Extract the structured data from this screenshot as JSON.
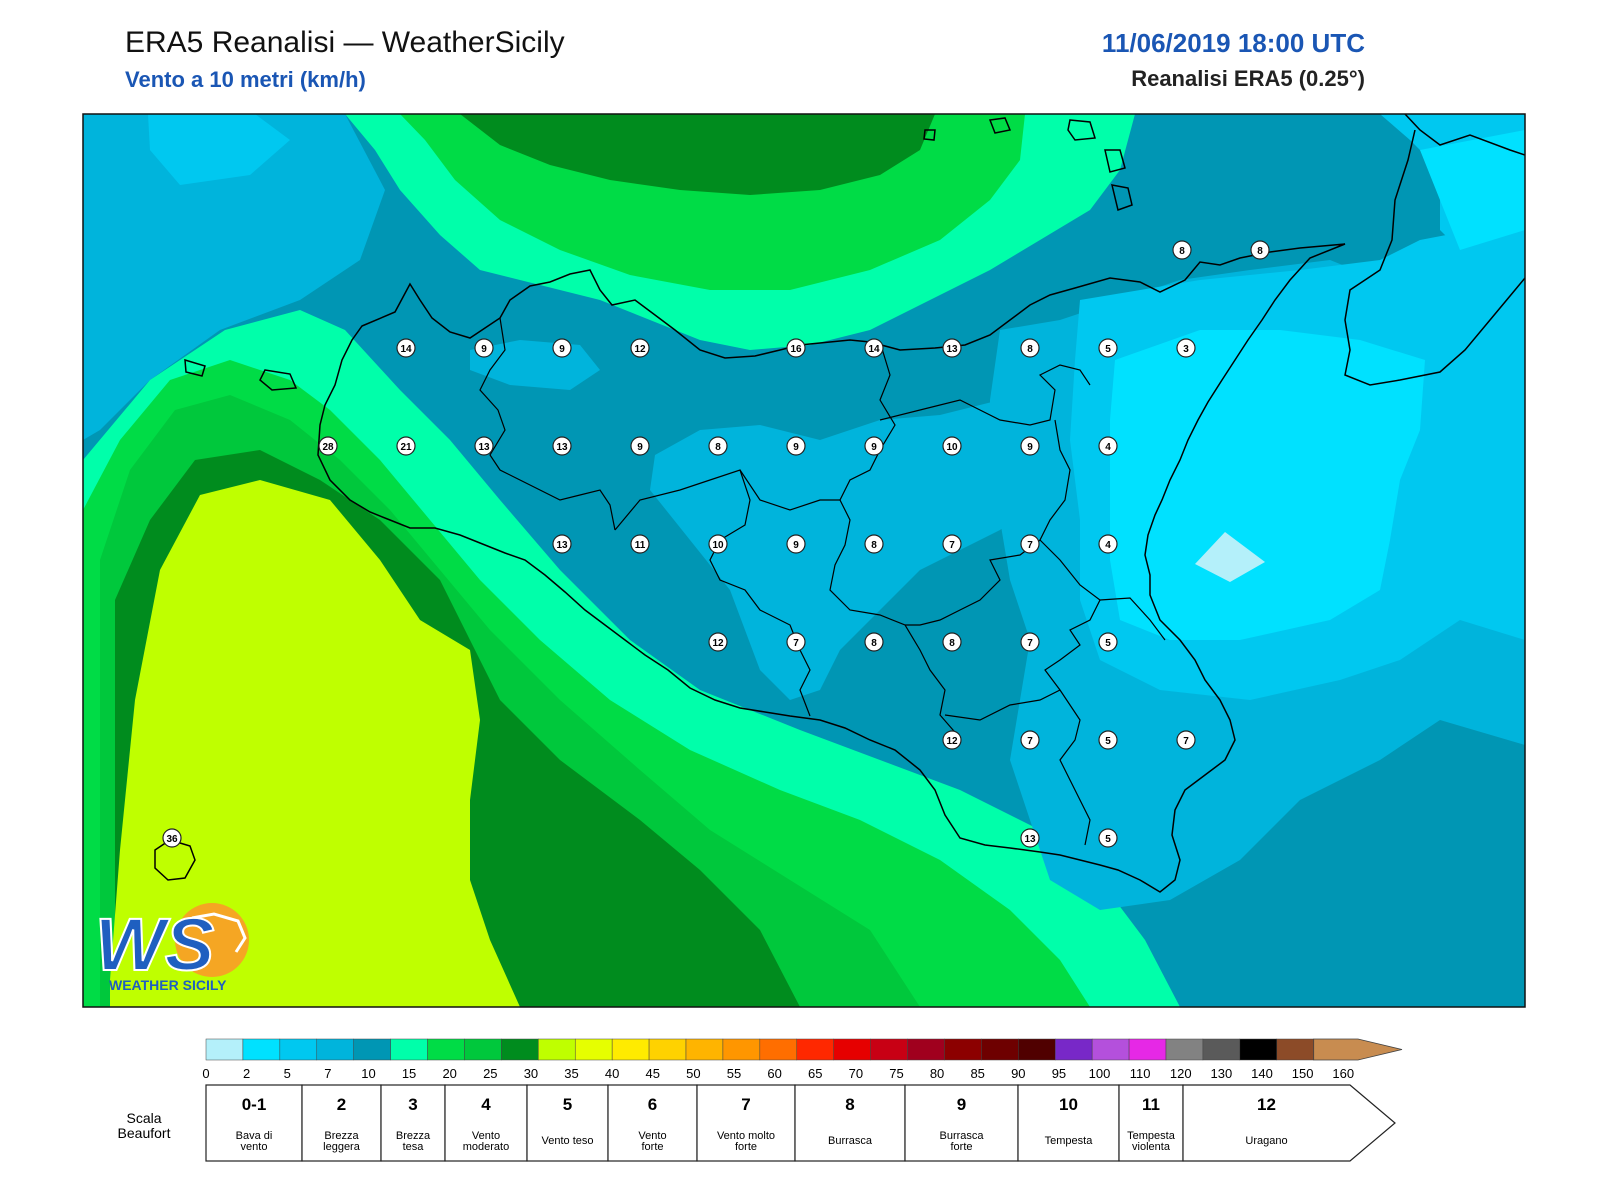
{
  "header": {
    "title": "ERA5 Reanalisi — WeatherSicily",
    "subtitle": "Vento a 10 metri (km/h)",
    "datetime": "11/06/2019 18:00 UTC",
    "model": "Reanalisi ERA5 (0.25°)"
  },
  "logo": {
    "initials": "WS",
    "name": "WEATHER SICILY"
  },
  "wind_values": [
    {
      "v": "8",
      "col": 1182,
      "row": 250
    },
    {
      "v": "8",
      "col": 1260,
      "row": 250
    },
    {
      "v": "14",
      "col": 406,
      "row": 348
    },
    {
      "v": "9",
      "col": 484,
      "row": 348
    },
    {
      "v": "9",
      "col": 562,
      "row": 348
    },
    {
      "v": "12",
      "col": 640,
      "row": 348
    },
    {
      "v": "16",
      "col": 796,
      "row": 348
    },
    {
      "v": "14",
      "col": 874,
      "row": 348
    },
    {
      "v": "13",
      "col": 952,
      "row": 348
    },
    {
      "v": "8",
      "col": 1030,
      "row": 348
    },
    {
      "v": "5",
      "col": 1108,
      "row": 348
    },
    {
      "v": "3",
      "col": 1186,
      "row": 348
    },
    {
      "v": "28",
      "col": 328,
      "row": 446
    },
    {
      "v": "21",
      "col": 406,
      "row": 446
    },
    {
      "v": "13",
      "col": 484,
      "row": 446
    },
    {
      "v": "13",
      "col": 562,
      "row": 446
    },
    {
      "v": "9",
      "col": 640,
      "row": 446
    },
    {
      "v": "8",
      "col": 718,
      "row": 446
    },
    {
      "v": "9",
      "col": 796,
      "row": 446
    },
    {
      "v": "9",
      "col": 874,
      "row": 446
    },
    {
      "v": "10",
      "col": 952,
      "row": 446
    },
    {
      "v": "9",
      "col": 1030,
      "row": 446
    },
    {
      "v": "4",
      "col": 1108,
      "row": 446
    },
    {
      "v": "13",
      "col": 562,
      "row": 544
    },
    {
      "v": "11",
      "col": 640,
      "row": 544
    },
    {
      "v": "10",
      "col": 718,
      "row": 544
    },
    {
      "v": "9",
      "col": 796,
      "row": 544
    },
    {
      "v": "8",
      "col": 874,
      "row": 544
    },
    {
      "v": "7",
      "col": 952,
      "row": 544
    },
    {
      "v": "7",
      "col": 1030,
      "row": 544
    },
    {
      "v": "4",
      "col": 1108,
      "row": 544
    },
    {
      "v": "12",
      "col": 718,
      "row": 642
    },
    {
      "v": "7",
      "col": 796,
      "row": 642
    },
    {
      "v": "8",
      "col": 874,
      "row": 642
    },
    {
      "v": "8",
      "col": 952,
      "row": 642
    },
    {
      "v": "7",
      "col": 1030,
      "row": 642
    },
    {
      "v": "5",
      "col": 1108,
      "row": 642
    },
    {
      "v": "12",
      "col": 952,
      "row": 740
    },
    {
      "v": "7",
      "col": 1030,
      "row": 740
    },
    {
      "v": "5",
      "col": 1108,
      "row": 740
    },
    {
      "v": "7",
      "col": 1186,
      "row": 740
    },
    {
      "v": "36",
      "col": 172,
      "row": 838
    },
    {
      "v": "13",
      "col": 1030,
      "row": 838
    },
    {
      "v": "5",
      "col": 1108,
      "row": 838
    }
  ],
  "colorbar": {
    "ticks": [
      "0",
      "2",
      "5",
      "7",
      "10",
      "15",
      "20",
      "25",
      "30",
      "35",
      "40",
      "45",
      "50",
      "55",
      "60",
      "65",
      "70",
      "75",
      "80",
      "85",
      "90",
      "95",
      "100",
      "110",
      "120",
      "130",
      "140",
      "150",
      "160"
    ],
    "colors": [
      "#b4f0fa",
      "#00e1ff",
      "#00c8f0",
      "#00b4dc",
      "#0096b4",
      "#00ffaa",
      "#00dc46",
      "#00c83c",
      "#008c1e",
      "#bfff00",
      "#e6ff00",
      "#ffeb00",
      "#ffd200",
      "#ffb400",
      "#ff9600",
      "#ff6e00",
      "#ff2800",
      "#e60000",
      "#c80014",
      "#a0001e",
      "#8c0000",
      "#6e0000",
      "#500000",
      "#7828c8",
      "#b450dc",
      "#e628e6",
      "#828282",
      "#5a5a5a",
      "#000000",
      "#8c4b28",
      "#c88c50"
    ]
  },
  "beaufort": {
    "label": "Scala Beaufort",
    "classes": [
      {
        "num": "0-1",
        "desc": "Bava di vento"
      },
      {
        "num": "2",
        "desc": "Brezza leggera"
      },
      {
        "num": "3",
        "desc": "Brezza tesa"
      },
      {
        "num": "4",
        "desc": "Vento moderato"
      },
      {
        "num": "5",
        "desc": "Vento teso"
      },
      {
        "num": "6",
        "desc": "Vento forte"
      },
      {
        "num": "7",
        "desc": "Vento molto forte"
      },
      {
        "num": "8",
        "desc": "Burrasca"
      },
      {
        "num": "9",
        "desc": "Burrasca forte"
      },
      {
        "num": "10",
        "desc": "Tempesta"
      },
      {
        "num": "11",
        "desc": "Tempesta violenta"
      },
      {
        "num": "12",
        "desc": "Uragano"
      }
    ]
  }
}
